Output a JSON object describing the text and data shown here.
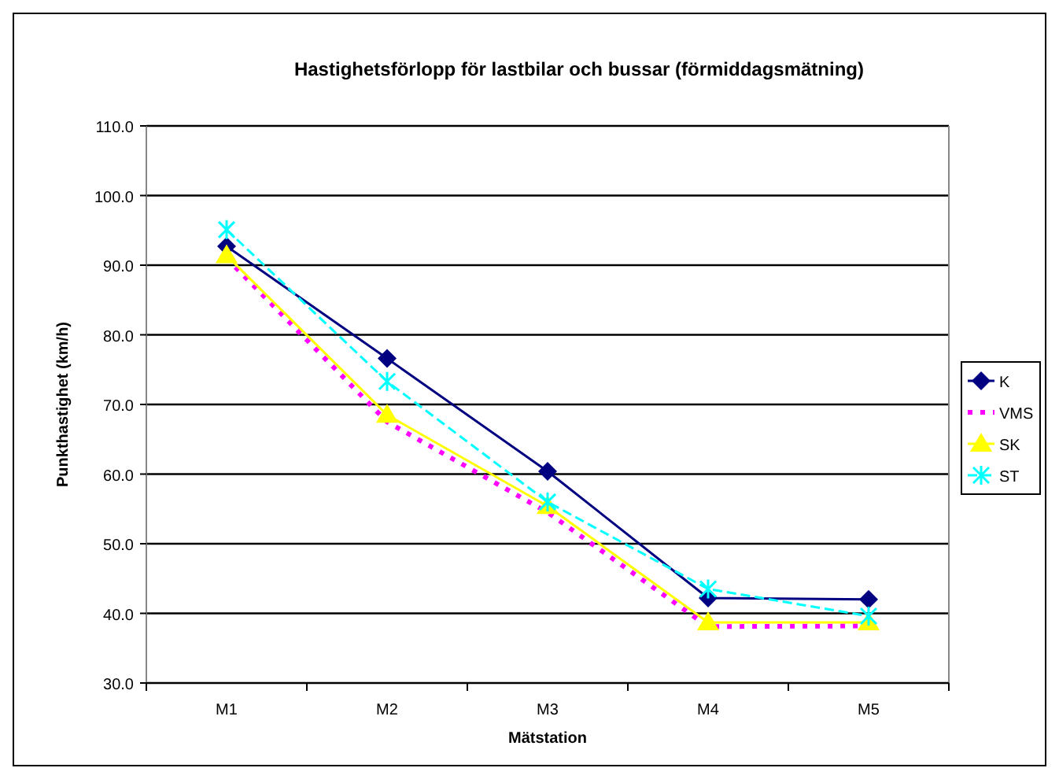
{
  "chart_data": {
    "type": "line",
    "title": "Hastighetsförlopp för lastbilar och bussar (förmiddagsmätning)",
    "xlabel": "Mätstation",
    "ylabel": "Punkthastighet (km/h)",
    "categories": [
      "M1",
      "M2",
      "M3",
      "M4",
      "M5"
    ],
    "series": [
      {
        "name": "K",
        "color": "#000080",
        "values": [
          92.7,
          76.6,
          60.4,
          42.2,
          42.0
        ],
        "marker": "diamond",
        "line_style": "solid"
      },
      {
        "name": "VMS",
        "color": "#ff00ff",
        "values": [
          91.0,
          67.5,
          54.5,
          38.1,
          38.2
        ],
        "marker": "none",
        "line_style": "dotted"
      },
      {
        "name": "SK",
        "color": "#ffff00",
        "values": [
          91.4,
          68.5,
          55.4,
          38.7,
          38.7
        ],
        "marker": "triangle",
        "line_style": "solid"
      },
      {
        "name": "ST",
        "color": "#00ffff",
        "values": [
          95.1,
          73.3,
          56.0,
          43.5,
          39.6
        ],
        "marker": "cross",
        "line_style": "dashed"
      }
    ],
    "ylim": [
      30,
      110
    ],
    "yticks": [
      {
        "value": 30,
        "label": "30.0"
      },
      {
        "value": 40,
        "label": "40.0"
      },
      {
        "value": 50,
        "label": "50.0"
      },
      {
        "value": 60,
        "label": "60.0"
      },
      {
        "value": 70,
        "label": "70.0"
      },
      {
        "value": 80,
        "label": "80.0"
      },
      {
        "value": 90,
        "label": "90.0"
      },
      {
        "value": 100,
        "label": "100.0"
      },
      {
        "value": 110,
        "label": "110.0"
      }
    ],
    "grid": "y",
    "legend": "right"
  }
}
